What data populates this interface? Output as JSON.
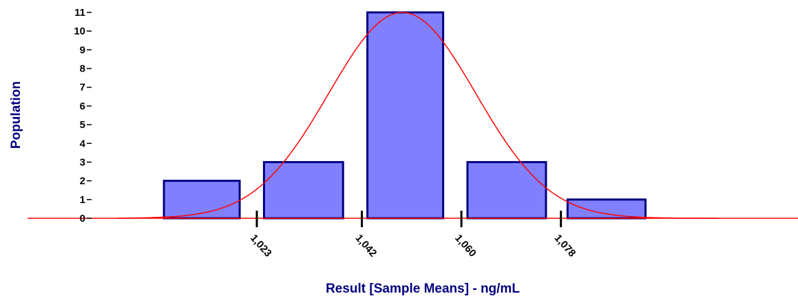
{
  "chart_data": {
    "type": "bar",
    "subtype": "histogram-with-normal-curve",
    "xlabel": "Result [Sample Means] - ng/mL",
    "ylabel": "Population",
    "ylim": [
      0,
      11
    ],
    "y_ticks": [
      0,
      1,
      2,
      3,
      4,
      5,
      6,
      7,
      8,
      9,
      10,
      11
    ],
    "x_tick_values": [
      1.023,
      1.042,
      1.06,
      1.078
    ],
    "x_tick_labels": [
      "1,023",
      "1,042",
      "1,060",
      "1,078"
    ],
    "xlim": [
      0.9979,
      1.1065
    ],
    "bins": [
      {
        "from": 1.0062,
        "to": 1.0199,
        "value": 2
      },
      {
        "from": 1.0243,
        "to": 1.0386,
        "value": 3
      },
      {
        "from": 1.043,
        "to": 1.0567,
        "value": 11
      },
      {
        "from": 1.0611,
        "to": 1.0753,
        "value": 3
      },
      {
        "from": 1.0792,
        "to": 1.0933,
        "value": 1
      }
    ],
    "normal_curve": {
      "mean": 1.0493,
      "sd": 0.0133,
      "peak": 11,
      "color": "#ff0000"
    },
    "colors": {
      "bar_fill": "#8080ff",
      "bar_stroke": "#000080",
      "curve": "#ff0000",
      "baseline": "#ff0000",
      "axis_title": "#000080",
      "tick_label": "#000000"
    },
    "grid": false,
    "legend": "none"
  }
}
